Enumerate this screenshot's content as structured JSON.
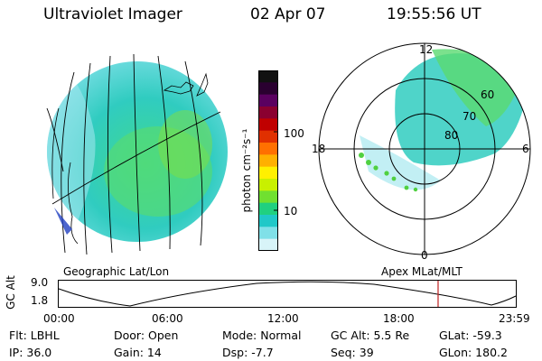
{
  "header": {
    "instrument": "Ultraviolet Imager",
    "date": "02 Apr 07",
    "time": "19:55:56 UT"
  },
  "geo_panel": {
    "caption": "Geographic Lat/Lon"
  },
  "colorbar": {
    "unit_label": "photon cm⁻²s⁻¹",
    "ticks": [
      "100",
      "10"
    ],
    "colors": [
      "#111111",
      "#2a0030",
      "#5a0060",
      "#8a0030",
      "#c00000",
      "#e03000",
      "#ff7000",
      "#ffb000",
      "#fff000",
      "#c8f000",
      "#70e030",
      "#20d080",
      "#20c8c8",
      "#80e0e8",
      "#d8f4f8"
    ]
  },
  "polar_panel": {
    "caption": "Apex MLat/MLT",
    "mlt_labels": {
      "top": "12",
      "left": "18",
      "right": "6",
      "bottom": "0"
    },
    "lat_labels": [
      "60",
      "70",
      "80"
    ]
  },
  "altitude_plot": {
    "ylabel": "GC Alt",
    "yticks": [
      "9.0",
      "1.8"
    ],
    "xticks": [
      "00:00",
      "06:00",
      "12:00",
      "18:00",
      "23:59"
    ],
    "current_time_fraction": 0.83
  },
  "info": {
    "filter": "Flt: LBHL",
    "ip": "IP: 36.0",
    "door": "Door: Open",
    "gain": "Gain: 14",
    "mode": "Mode: Normal",
    "dsp": "Dsp:    -7.7",
    "gc_alt": "GC Alt: 5.5 Re",
    "seq": "Seq: 39",
    "glat": "GLat: -59.3",
    "glon": "GLon: 180.2"
  }
}
